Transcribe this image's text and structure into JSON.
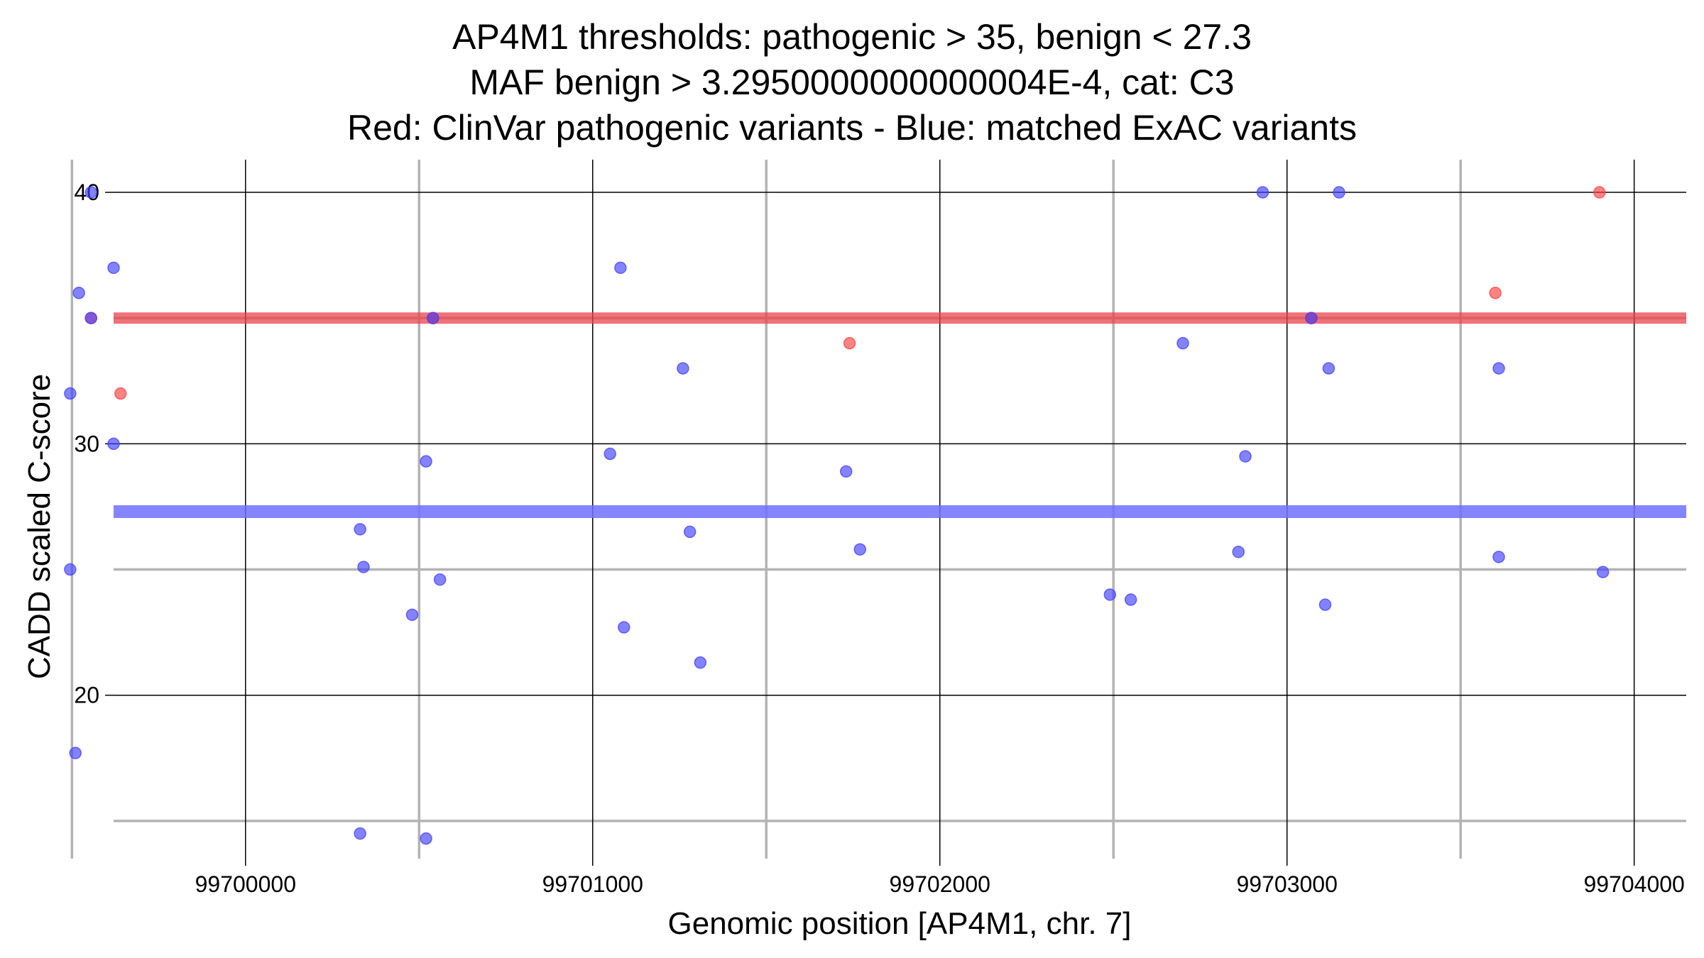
{
  "chart_data": {
    "type": "scatter",
    "title_lines": [
      "AP4M1 thresholds: pathogenic > 35, benign < 27.3",
      "MAF benign > 3.2950000000000004E-4, cat: C3",
      "Red: ClinVar pathogenic variants - Blue: matched ExAC variants"
    ],
    "xlabel": "Genomic position [AP4M1, chr. 7]",
    "ylabel": "CADD scaled C-score",
    "xlim": [
      99699620,
      99704150
    ],
    "ylim": [
      13.5,
      41.3
    ],
    "x_major_ticks": [
      99700000,
      99701000,
      99702000,
      99703000,
      99704000
    ],
    "x_minor_ticks": [
      99699500,
      99700500,
      99701500,
      99702500,
      99703500
    ],
    "y_major_ticks": [
      20,
      30,
      40
    ],
    "y_minor_ticks": [
      15,
      25,
      35
    ],
    "thresholds": [
      {
        "name": "pathogenic",
        "value": 35,
        "color": "#e8434b"
      },
      {
        "name": "benign",
        "value": 27.3,
        "color": "#7070ff"
      }
    ],
    "colors": {
      "pathogenic": "#ff4040",
      "benign": "#4040ff"
    },
    "series": [
      {
        "name": "ClinVar pathogenic variants",
        "color": "#ff4040",
        "points": [
          {
            "x": 99699640,
            "y": 32
          },
          {
            "x": 99699555,
            "y": 35
          },
          {
            "x": 99700540,
            "y": 35
          },
          {
            "x": 99701740,
            "y": 34
          },
          {
            "x": 99703070,
            "y": 35
          },
          {
            "x": 99703600,
            "y": 36
          },
          {
            "x": 99703900,
            "y": 40
          }
        ]
      },
      {
        "name": "matched ExAC variants",
        "color": "#4040ff",
        "points": [
          {
            "x": 99699555,
            "y": 40
          },
          {
            "x": 99699620,
            "y": 37
          },
          {
            "x": 99699520,
            "y": 36
          },
          {
            "x": 99699555,
            "y": 35
          },
          {
            "x": 99699495,
            "y": 32
          },
          {
            "x": 99699620,
            "y": 30
          },
          {
            "x": 99699495,
            "y": 25
          },
          {
            "x": 99699510,
            "y": 17.7
          },
          {
            "x": 99700330,
            "y": 26.6
          },
          {
            "x": 99700340,
            "y": 25.1
          },
          {
            "x": 99700520,
            "y": 29.3
          },
          {
            "x": 99700480,
            "y": 23.2
          },
          {
            "x": 99700560,
            "y": 24.6
          },
          {
            "x": 99700540,
            "y": 35
          },
          {
            "x": 99700330,
            "y": 14.5
          },
          {
            "x": 99700520,
            "y": 14.3
          },
          {
            "x": 99701080,
            "y": 37
          },
          {
            "x": 99701050,
            "y": 29.6
          },
          {
            "x": 99701090,
            "y": 22.7
          },
          {
            "x": 99701260,
            "y": 33
          },
          {
            "x": 99701280,
            "y": 26.5
          },
          {
            "x": 99701310,
            "y": 21.3
          },
          {
            "x": 99701730,
            "y": 28.9
          },
          {
            "x": 99701770,
            "y": 25.8
          },
          {
            "x": 99702490,
            "y": 24
          },
          {
            "x": 99702550,
            "y": 23.8
          },
          {
            "x": 99702700,
            "y": 34
          },
          {
            "x": 99702880,
            "y": 29.5
          },
          {
            "x": 99702860,
            "y": 25.7
          },
          {
            "x": 99702930,
            "y": 40
          },
          {
            "x": 99703150,
            "y": 40
          },
          {
            "x": 99703120,
            "y": 33
          },
          {
            "x": 99703110,
            "y": 23.6
          },
          {
            "x": 99703070,
            "y": 35
          },
          {
            "x": 99703610,
            "y": 33
          },
          {
            "x": 99703610,
            "y": 25.5
          },
          {
            "x": 99703910,
            "y": 24.9
          }
        ]
      }
    ]
  }
}
